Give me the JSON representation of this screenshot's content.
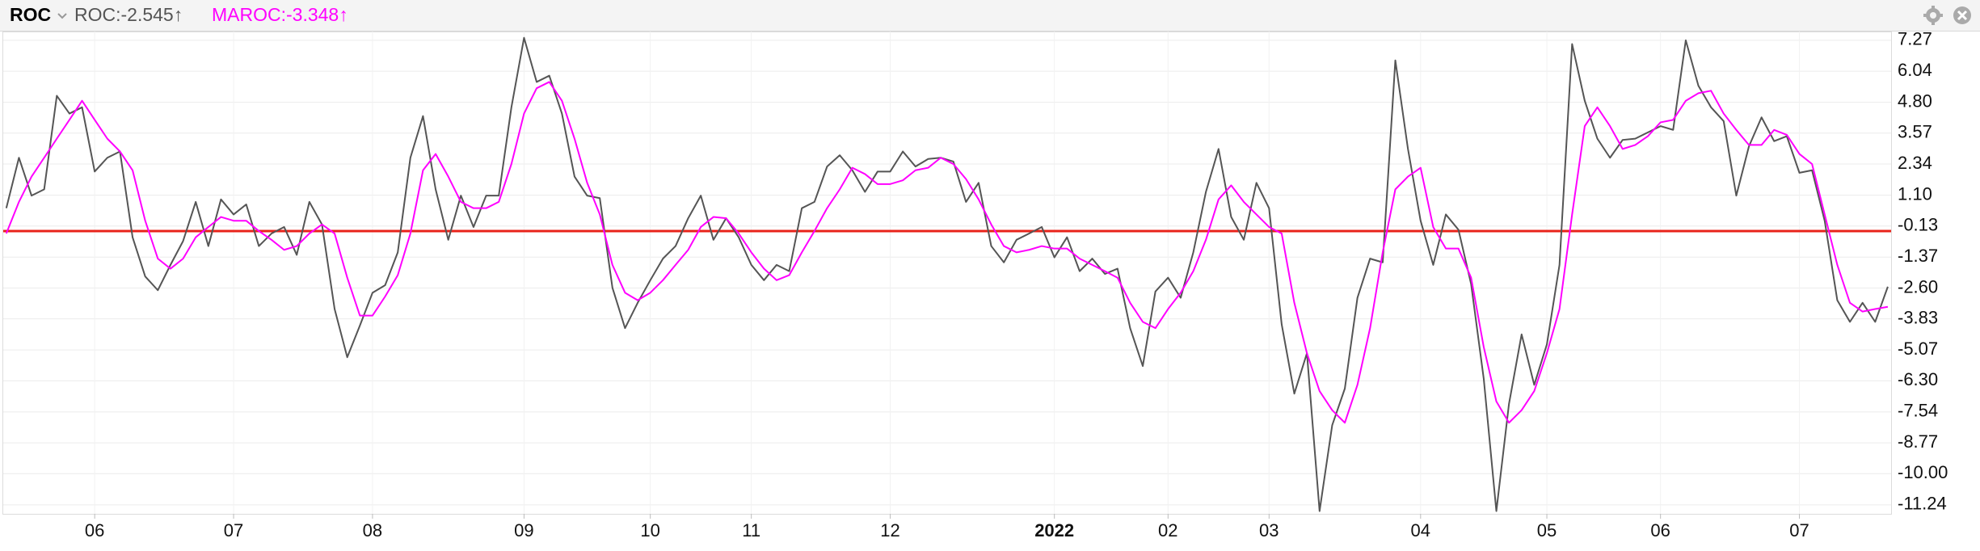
{
  "chart_data": {
    "type": "line",
    "title": "ROC",
    "categories": [
      null,
      null,
      null,
      null,
      null,
      null,
      null,
      "06",
      null,
      null,
      null,
      null,
      null,
      null,
      null,
      null,
      null,
      null,
      "07",
      null,
      null,
      null,
      null,
      null,
      null,
      null,
      null,
      null,
      null,
      "08",
      null,
      null,
      null,
      null,
      null,
      null,
      null,
      null,
      null,
      null,
      null,
      "09",
      null,
      null,
      null,
      null,
      null,
      null,
      null,
      null,
      null,
      "10",
      null,
      null,
      null,
      null,
      null,
      null,
      null,
      "11",
      null,
      null,
      null,
      null,
      null,
      null,
      null,
      null,
      null,
      null,
      "12",
      null,
      null,
      null,
      null,
      null,
      null,
      null,
      null,
      null,
      null,
      null,
      null,
      "2022",
      null,
      null,
      null,
      null,
      null,
      null,
      null,
      null,
      "02",
      null,
      null,
      null,
      null,
      null,
      null,
      null,
      "03",
      null,
      null,
      null,
      null,
      null,
      null,
      null,
      null,
      null,
      null,
      null,
      "04",
      null,
      null,
      null,
      null,
      null,
      null,
      null,
      null,
      null,
      "05",
      null,
      null,
      null,
      null,
      null,
      null,
      null,
      null,
      "06",
      null,
      null,
      null,
      null,
      null,
      null,
      null,
      null,
      null,
      null,
      "07",
      null,
      null,
      null,
      null,
      null,
      null,
      null
    ],
    "series": [
      {
        "name": "ROC:-2.545↑",
        "color": "#555555",
        "values": [
          0.58,
          2.59,
          1.08,
          1.33,
          5.06,
          4.35,
          4.6,
          2.04,
          2.59,
          2.84,
          -0.58,
          -2.14,
          -2.69,
          -1.68,
          -0.73,
          0.83,
          -0.93,
          0.93,
          0.33,
          0.73,
          -0.93,
          -0.43,
          -0.17,
          -1.28,
          0.83,
          -0.07,
          -3.44,
          -5.36,
          -4.1,
          -2.79,
          -2.49,
          -1.18,
          2.59,
          4.25,
          1.33,
          -0.68,
          1.08,
          -0.17,
          1.08,
          1.08,
          4.6,
          7.37,
          5.61,
          5.86,
          4.35,
          1.84,
          1.08,
          0.98,
          -2.59,
          -4.2,
          -3.19,
          -2.29,
          -1.43,
          -0.93,
          0.18,
          1.08,
          -0.68,
          0.18,
          -0.58,
          -1.68,
          -2.29,
          -1.68,
          -1.93,
          0.58,
          0.83,
          2.24,
          2.69,
          2.09,
          1.23,
          2.04,
          2.04,
          2.84,
          2.24,
          2.54,
          2.59,
          2.44,
          0.83,
          1.59,
          -0.93,
          -1.58,
          -0.68,
          -0.43,
          -0.17,
          -1.38,
          -0.58,
          -1.93,
          -1.43,
          -2.04,
          -1.83,
          -4.2,
          -5.71,
          -2.74,
          -2.19,
          -2.99,
          -1.18,
          1.23,
          2.94,
          0.23,
          -0.68,
          1.59,
          0.58,
          -4.05,
          -6.81,
          -5.2,
          -11.49,
          -8.07,
          -6.61,
          -2.99,
          -1.43,
          -1.58,
          6.47,
          2.94,
          0.08,
          -1.68,
          0.33,
          -0.28,
          -2.44,
          -6.21,
          -11.49,
          -7.22,
          -4.45,
          -6.46,
          -4.85,
          -1.68,
          7.12,
          4.86,
          3.35,
          2.59,
          3.3,
          3.35,
          3.6,
          3.85,
          3.7,
          7.27,
          5.46,
          4.6,
          4.05,
          1.08,
          3.04,
          4.2,
          3.25,
          3.45,
          1.99,
          2.09,
          0.08,
          -3.09,
          -3.95,
          -3.19,
          -3.95,
          -2.55
        ]
      },
      {
        "name": "MAROC:-3.348↑",
        "color": "#ff00ff",
        "values": [
          -0.43,
          0.83,
          1.84,
          2.59,
          3.35,
          4.1,
          4.86,
          4.1,
          3.35,
          2.84,
          2.09,
          0.08,
          -1.43,
          -1.83,
          -1.43,
          -0.58,
          -0.17,
          0.23,
          0.08,
          0.08,
          -0.33,
          -0.68,
          -1.08,
          -0.93,
          -0.43,
          -0.07,
          -0.43,
          -2.19,
          -3.7,
          -3.7,
          -2.94,
          -2.09,
          -0.43,
          2.09,
          2.74,
          1.84,
          0.83,
          0.58,
          0.58,
          0.83,
          2.34,
          4.35,
          5.36,
          5.61,
          4.86,
          3.35,
          1.59,
          0.33,
          -1.68,
          -2.79,
          -3.09,
          -2.79,
          -2.29,
          -1.68,
          -1.08,
          -0.17,
          0.23,
          0.18,
          -0.43,
          -1.18,
          -1.83,
          -2.29,
          -2.09,
          -1.18,
          -0.33,
          0.58,
          1.33,
          2.19,
          1.94,
          1.54,
          1.54,
          1.69,
          2.09,
          2.19,
          2.59,
          2.34,
          1.74,
          0.93,
          -0.07,
          -0.93,
          -1.18,
          -1.08,
          -0.93,
          -1.03,
          -1.03,
          -1.43,
          -1.68,
          -1.93,
          -2.19,
          -3.19,
          -3.95,
          -4.2,
          -3.44,
          -2.79,
          -1.93,
          -0.68,
          0.93,
          1.49,
          0.83,
          0.33,
          -0.17,
          -0.43,
          -3.19,
          -5.2,
          -6.71,
          -7.47,
          -7.97,
          -6.46,
          -4.2,
          -1.18,
          1.33,
          1.84,
          2.19,
          -0.17,
          -1.03,
          -1.03,
          -2.19,
          -4.95,
          -7.12,
          -7.97,
          -7.47,
          -6.71,
          -5.2,
          -3.44,
          0.33,
          3.85,
          4.6,
          3.85,
          2.94,
          3.1,
          3.45,
          4.0,
          4.1,
          4.86,
          5.16,
          5.26,
          4.35,
          3.7,
          3.1,
          3.1,
          3.7,
          3.5,
          2.74,
          2.34,
          0.33,
          -1.68,
          -3.19,
          -3.54,
          -3.44,
          -3.35
        ]
      }
    ],
    "reference_line": {
      "value": -0.33,
      "color": "#e8231a"
    },
    "ylim": [
      -11.6,
      7.62
    ],
    "yticks": [
      7.27,
      6.04,
      {
        "value": 4.8,
        "label": "4.80"
      },
      3.57,
      2.34,
      {
        "value": 1.1,
        "label": "1.10"
      },
      -0.13,
      -1.37,
      {
        "value": -2.6,
        "label": "-2.60"
      },
      -3.83,
      -5.07,
      {
        "value": -6.3,
        "label": "-6.30"
      },
      -7.54,
      -8.77,
      {
        "value": -10,
        "label": "-10.00"
      },
      -11.24
    ],
    "grid": true
  }
}
